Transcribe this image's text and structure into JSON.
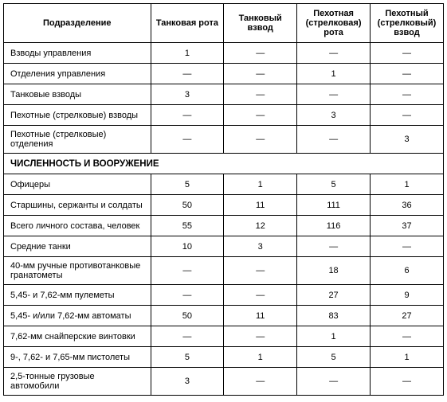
{
  "table": {
    "headers": [
      "Подразделение",
      "Танковая рота",
      "Танковый взвод",
      "Пехотная (стрелковая) рота",
      "Пехотный (стрелковый) взвод"
    ],
    "section1_rows": [
      {
        "label": "Взводы управления",
        "values": [
          "1",
          "—",
          "—",
          "—"
        ]
      },
      {
        "label": "Отделения управления",
        "values": [
          "—",
          "—",
          "1",
          "—"
        ]
      },
      {
        "label": "Танковые взводы",
        "values": [
          "3",
          "—",
          "—",
          "—"
        ]
      },
      {
        "label": "Пехотные (стрелковые) взводы",
        "values": [
          "—",
          "—",
          "3",
          "—"
        ]
      },
      {
        "label": "Пехотные (стрелковые) отделения",
        "values": [
          "—",
          "—",
          "—",
          "3"
        ]
      }
    ],
    "section2_title": "ЧИСЛЕННОСТЬ И ВООРУЖЕНИЕ",
    "section2_rows": [
      {
        "label": "Офицеры",
        "values": [
          "5",
          "1",
          "5",
          "1"
        ]
      },
      {
        "label": "Старшины, сержанты и солдаты",
        "values": [
          "50",
          "11",
          "111",
          "36"
        ]
      },
      {
        "label": "Всего личного состава, человек",
        "values": [
          "55",
          "12",
          "116",
          "37"
        ]
      },
      {
        "label": "Средние танки",
        "values": [
          "10",
          "3",
          "—",
          "—"
        ]
      },
      {
        "label": "40-мм ручные противотанковые гранатометы",
        "values": [
          "—",
          "—",
          "18",
          "6"
        ]
      },
      {
        "label": "5,45- и 7,62-мм пулеметы",
        "values": [
          "—",
          "—",
          "27",
          "9"
        ]
      },
      {
        "label": "5,45- и/или 7,62-мм автоматы",
        "values": [
          "50",
          "11",
          "83",
          "27"
        ]
      },
      {
        "label": "7,62-мм снайперские винтовки",
        "values": [
          "—",
          "—",
          "1",
          "—"
        ]
      },
      {
        "label": "9-, 7,62- и 7,65-мм пистолеты",
        "values": [
          "5",
          "1",
          "5",
          "1"
        ]
      },
      {
        "label": "2,5-тонные грузовые автомобили",
        "values": [
          "3",
          "—",
          "—",
          "—"
        ]
      }
    ]
  }
}
